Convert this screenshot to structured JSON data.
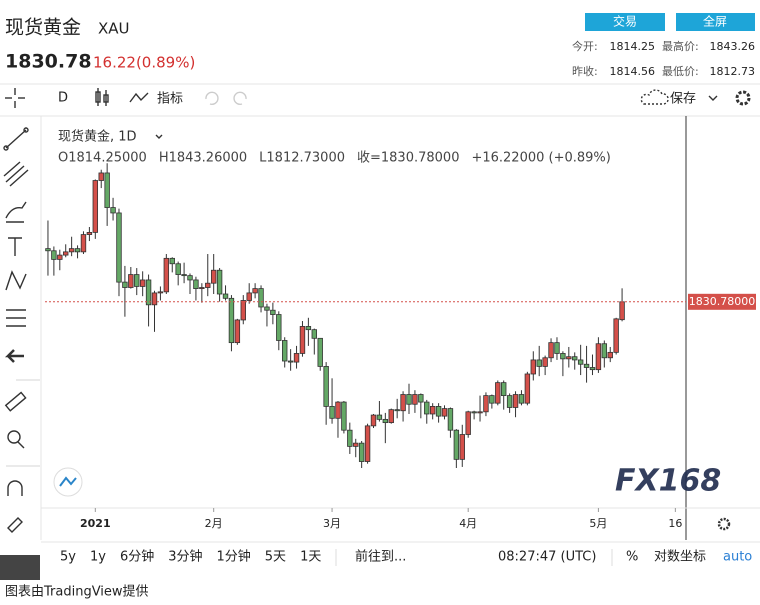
{
  "header": {
    "title": "现货黄金",
    "symbol": "XAU",
    "buttons": [
      "交易",
      "全屏"
    ],
    "price": "1830.78",
    "change": "16.22(0.89%)",
    "stats": [
      {
        "label": "今开:",
        "value": "1814.25"
      },
      {
        "label": "最高价:",
        "value": "1843.26"
      },
      {
        "label": "昨收:",
        "value": "1814.56"
      },
      {
        "label": "最低价:",
        "value": "1812.73"
      }
    ]
  },
  "toolbar": {
    "interval": "D",
    "indicators": "指标",
    "save": "保存"
  },
  "chart_data": {
    "type": "candlestick",
    "title": "现货黄金, 1D",
    "ohlc_text": [
      "O1814.25000",
      "H1843.26000",
      "L1812.73000",
      "收=1830.78000",
      "+16.22000 (+0.89%)"
    ],
    "last_label": "1830.78000",
    "up_color": "#d4504a",
    "down_color": "#64a866",
    "watermark": "FX168",
    "xlim": [
      -0.5,
      107.8
    ],
    "ylim": [
      1640,
      1999
    ],
    "xticks": [
      {
        "value": 8,
        "label": "2021"
      },
      {
        "value": 28,
        "label": "2月"
      },
      {
        "value": 48,
        "label": "3月"
      },
      {
        "value": 71,
        "label": "4月"
      },
      {
        "value": 93,
        "label": "5月"
      },
      {
        "value": 106,
        "label": "16"
      }
    ],
    "open": [
      1880,
      1878,
      1870,
      1874,
      1877,
      1880,
      1877,
      1893,
      1895,
      1943,
      1950,
      1918,
      1913,
      1849,
      1844,
      1856,
      1845,
      1851,
      1828,
      1839,
      1840,
      1871,
      1866,
      1856,
      1855,
      1851,
      1843,
      1844,
      1848,
      1860,
      1838,
      1834,
      1793,
      1814,
      1832,
      1839,
      1843,
      1826,
      1823,
      1819,
      1795,
      1776,
      1775,
      1783,
      1808,
      1805,
      1797,
      1771,
      1734,
      1723,
      1738,
      1712,
      1697,
      1700,
      1683,
      1716,
      1726,
      1722,
      1719,
      1731,
      1730,
      1745,
      1736,
      1745,
      1738,
      1727,
      1734,
      1725,
      1732,
      1712,
      1685,
      1708,
      1729,
      1728,
      1729,
      1744,
      1737,
      1756,
      1744,
      1733,
      1745,
      1737,
      1764,
      1777,
      1771,
      1779,
      1793,
      1783,
      1778,
      1780,
      1777,
      1773,
      1770,
      1768,
      1792,
      1779,
      1784,
      1814.25
    ],
    "high": [
      1906,
      1882,
      1879,
      1884,
      1891,
      1883,
      1896,
      1900,
      1944,
      1953,
      1959,
      1927,
      1917,
      1864,
      1863,
      1862,
      1859,
      1856,
      1841,
      1845,
      1875,
      1872,
      1868,
      1867,
      1857,
      1854,
      1848,
      1875,
      1875,
      1862,
      1846,
      1837,
      1815,
      1837,
      1848,
      1848,
      1846,
      1829,
      1830,
      1822,
      1798,
      1787,
      1790,
      1813,
      1816,
      1806,
      1797,
      1775,
      1760,
      1739,
      1739,
      1719,
      1704,
      1702,
      1718,
      1727,
      1739,
      1728,
      1732,
      1741,
      1748,
      1755,
      1749,
      1746,
      1740,
      1737,
      1737,
      1735,
      1733,
      1713,
      1717,
      1730,
      1730,
      1744,
      1747,
      1745,
      1758,
      1758,
      1746,
      1748,
      1749,
      1766,
      1785,
      1790,
      1781,
      1797,
      1798,
      1785,
      1789,
      1784,
      1791,
      1790,
      1782,
      1798,
      1795,
      1789,
      1816,
      1843.26
    ],
    "low": [
      1855,
      1855,
      1860,
      1872,
      1873,
      1871,
      1875,
      1887,
      1889,
      1936,
      1901,
      1906,
      1836,
      1817,
      1843,
      1837,
      1836,
      1808,
      1803,
      1832,
      1838,
      1858,
      1846,
      1848,
      1838,
      1832,
      1830,
      1836,
      1838,
      1831,
      1832,
      1785,
      1791,
      1810,
      1829,
      1834,
      1821,
      1808,
      1810,
      1786,
      1770,
      1767,
      1769,
      1780,
      1790,
      1782,
      1767,
      1717,
      1718,
      1705,
      1709,
      1690,
      1687,
      1677,
      1681,
      1714,
      1720,
      1700,
      1718,
      1723,
      1720,
      1727,
      1728,
      1723,
      1718,
      1722,
      1719,
      1722,
      1705,
      1677,
      1678,
      1705,
      1722,
      1720,
      1725,
      1732,
      1735,
      1731,
      1728,
      1724,
      1735,
      1735,
      1758,
      1762,
      1763,
      1775,
      1777,
      1762,
      1770,
      1768,
      1763,
      1756,
      1763,
      1765,
      1770,
      1775,
      1782,
      1812.73
    ],
    "close": [
      1878,
      1870,
      1874,
      1877,
      1880,
      1877,
      1893,
      1895,
      1943,
      1950,
      1918,
      1913,
      1849,
      1844,
      1856,
      1845,
      1851,
      1828,
      1839,
      1840,
      1871,
      1866,
      1856,
      1855,
      1851,
      1843,
      1844,
      1848,
      1860,
      1838,
      1834,
      1793,
      1814,
      1832,
      1839,
      1843,
      1826,
      1823,
      1819,
      1795,
      1776,
      1775,
      1783,
      1808,
      1805,
      1797,
      1771,
      1734,
      1723,
      1738,
      1712,
      1697,
      1700,
      1683,
      1716,
      1726,
      1722,
      1719,
      1731,
      1730,
      1745,
      1736,
      1745,
      1738,
      1727,
      1734,
      1725,
      1732,
      1712,
      1685,
      1708,
      1729,
      1728,
      1729,
      1744,
      1737,
      1756,
      1744,
      1733,
      1745,
      1737,
      1764,
      1777,
      1771,
      1779,
      1793,
      1783,
      1778,
      1780,
      1777,
      1773,
      1770,
      1768,
      1792,
      1779,
      1784,
      1815,
      1830.78
    ]
  },
  "bottom_bar": {
    "ranges": [
      "5y",
      "1y",
      "6分钟",
      "3分钟",
      "1分钟",
      "5天",
      "1天"
    ],
    "goto": "前往到...",
    "time": "08:27:47 (UTC)",
    "percent": "%",
    "log": "对数坐标",
    "auto": "auto"
  },
  "footer": "图表由TradingView提供"
}
